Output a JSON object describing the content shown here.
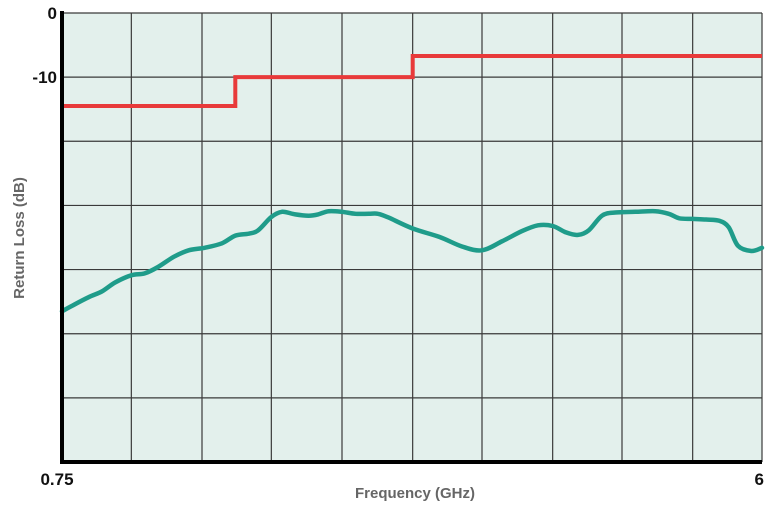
{
  "chart_data": {
    "type": "line",
    "title": "",
    "xlabel": "Frequency (GHz)",
    "ylabel": "Return Loss (dB)",
    "x_tick_labels": [
      {
        "value": 0.75,
        "label": "0.75"
      },
      {
        "value": 6,
        "label": "6"
      }
    ],
    "y_tick_labels": [
      {
        "value": 0,
        "label": "0"
      },
      {
        "value": -10,
        "label": "-10"
      }
    ],
    "xlim": [
      0.75,
      6
    ],
    "ylim": [
      -70,
      0
    ],
    "x_gridlines": [
      0.75,
      1.27,
      1.8,
      2.32,
      2.85,
      3.38,
      3.9,
      4.43,
      4.95,
      5.48,
      6
    ],
    "y_gridlines": [
      0,
      -10,
      -20,
      -30,
      -40,
      -50,
      -60,
      -70
    ],
    "grid": true,
    "legend": "none",
    "colors": {
      "background": "#e3f0ec",
      "grid": "#3a3a3a",
      "limit_line": "#e83a3a",
      "measured_line": "#1f9c8a"
    },
    "series": [
      {
        "points": [
          [
            0.75,
            -14.5
          ],
          [
            2.05,
            -14.5
          ],
          [
            2.05,
            -10
          ],
          [
            3.38,
            -10
          ],
          [
            3.38,
            -6.7
          ],
          [
            6,
            -6.7
          ]
        ]
      },
      {
        "points": [
          [
            0.75,
            -46.5
          ],
          [
            0.83,
            -45.6
          ],
          [
            0.95,
            -44.3
          ],
          [
            1.05,
            -43.4
          ],
          [
            1.15,
            -42.0
          ],
          [
            1.27,
            -40.9
          ],
          [
            1.37,
            -40.6
          ],
          [
            1.47,
            -39.6
          ],
          [
            1.59,
            -38.0
          ],
          [
            1.7,
            -37.0
          ],
          [
            1.82,
            -36.6
          ],
          [
            1.95,
            -35.9
          ],
          [
            2.05,
            -34.7
          ],
          [
            2.15,
            -34.4
          ],
          [
            2.22,
            -33.9
          ],
          [
            2.32,
            -31.8
          ],
          [
            2.4,
            -31.0
          ],
          [
            2.5,
            -31.4
          ],
          [
            2.6,
            -31.6
          ],
          [
            2.67,
            -31.4
          ],
          [
            2.75,
            -30.9
          ],
          [
            2.85,
            -31.0
          ],
          [
            2.95,
            -31.3
          ],
          [
            3.05,
            -31.3
          ],
          [
            3.12,
            -31.3
          ],
          [
            3.2,
            -31.9
          ],
          [
            3.38,
            -33.6
          ],
          [
            3.58,
            -34.9
          ],
          [
            3.75,
            -36.4
          ],
          [
            3.9,
            -37.0
          ],
          [
            4.05,
            -35.6
          ],
          [
            4.2,
            -34.0
          ],
          [
            4.32,
            -33.1
          ],
          [
            4.43,
            -33.2
          ],
          [
            4.53,
            -34.2
          ],
          [
            4.62,
            -34.6
          ],
          [
            4.7,
            -33.9
          ],
          [
            4.8,
            -31.6
          ],
          [
            4.9,
            -31.1
          ],
          [
            5.05,
            -31.0
          ],
          [
            5.2,
            -30.9
          ],
          [
            5.3,
            -31.3
          ],
          [
            5.38,
            -32.0
          ],
          [
            5.48,
            -32.1
          ],
          [
            5.58,
            -32.2
          ],
          [
            5.68,
            -32.4
          ],
          [
            5.75,
            -33.4
          ],
          [
            5.82,
            -36.3
          ],
          [
            5.92,
            -37.1
          ],
          [
            6,
            -36.6
          ]
        ]
      }
    ]
  }
}
